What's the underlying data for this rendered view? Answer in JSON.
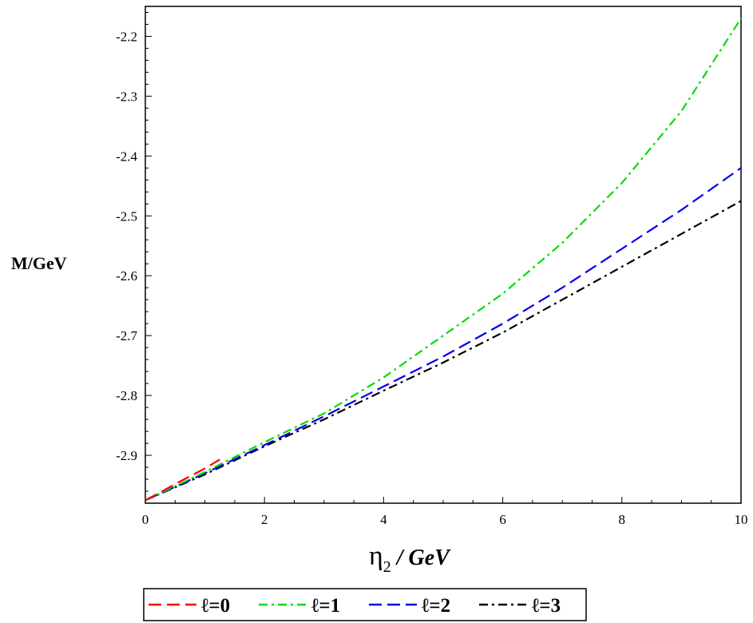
{
  "chart_data": {
    "type": "line",
    "title": "",
    "xlabel_symbol": "η",
    "xlabel_subscript": "2",
    "xlabel_unit": " / GeV",
    "ylabel": "M/GeV",
    "xlim": [
      0,
      10
    ],
    "ylim": [
      -2.98,
      -2.15
    ],
    "x_ticks": [
      0,
      2,
      4,
      6,
      8,
      10
    ],
    "x_tick_labels": [
      "0",
      "2",
      "4",
      "6",
      "8",
      "10"
    ],
    "y_ticks": [
      -2.9,
      -2.8,
      -2.7,
      -2.6,
      -2.5,
      -2.4,
      -2.3,
      -2.2
    ],
    "y_tick_labels": [
      "-2.9",
      "-2.8",
      "-2.7",
      "-2.6",
      "-2.5",
      "-2.4",
      "-2.3",
      "-2.2"
    ],
    "grid": false,
    "legend_position": "bottom",
    "series": [
      {
        "name": "ℓ=0",
        "color": "#ff0000",
        "dash": "dash",
        "x": [
          0,
          0.25,
          0.5,
          0.75,
          1.0,
          1.25
        ],
        "y": [
          -2.975,
          -2.962,
          -2.948,
          -2.935,
          -2.922,
          -2.907
        ]
      },
      {
        "name": "ℓ=1",
        "color": "#00dd00",
        "dash": "dashdot",
        "x": [
          0,
          1,
          2,
          3,
          4,
          5,
          6,
          7,
          8,
          9,
          10
        ],
        "y": [
          -2.975,
          -2.928,
          -2.878,
          -2.83,
          -2.77,
          -2.7,
          -2.63,
          -2.545,
          -2.445,
          -2.325,
          -2.17
        ]
      },
      {
        "name": "ℓ=2",
        "color": "#0000ee",
        "dash": "dash",
        "x": [
          0,
          1,
          2,
          3,
          4,
          5,
          6,
          7,
          8,
          9,
          10
        ],
        "y": [
          -2.975,
          -2.93,
          -2.883,
          -2.835,
          -2.785,
          -2.735,
          -2.68,
          -2.62,
          -2.555,
          -2.49,
          -2.42
        ]
      },
      {
        "name": "ℓ=3",
        "color": "#000000",
        "dash": "dashdot",
        "x": [
          0,
          1,
          2,
          3,
          4,
          5,
          6,
          7,
          8,
          9,
          10
        ],
        "y": [
          -2.975,
          -2.932,
          -2.885,
          -2.84,
          -2.792,
          -2.745,
          -2.695,
          -2.64,
          -2.585,
          -2.53,
          -2.475
        ]
      }
    ]
  }
}
